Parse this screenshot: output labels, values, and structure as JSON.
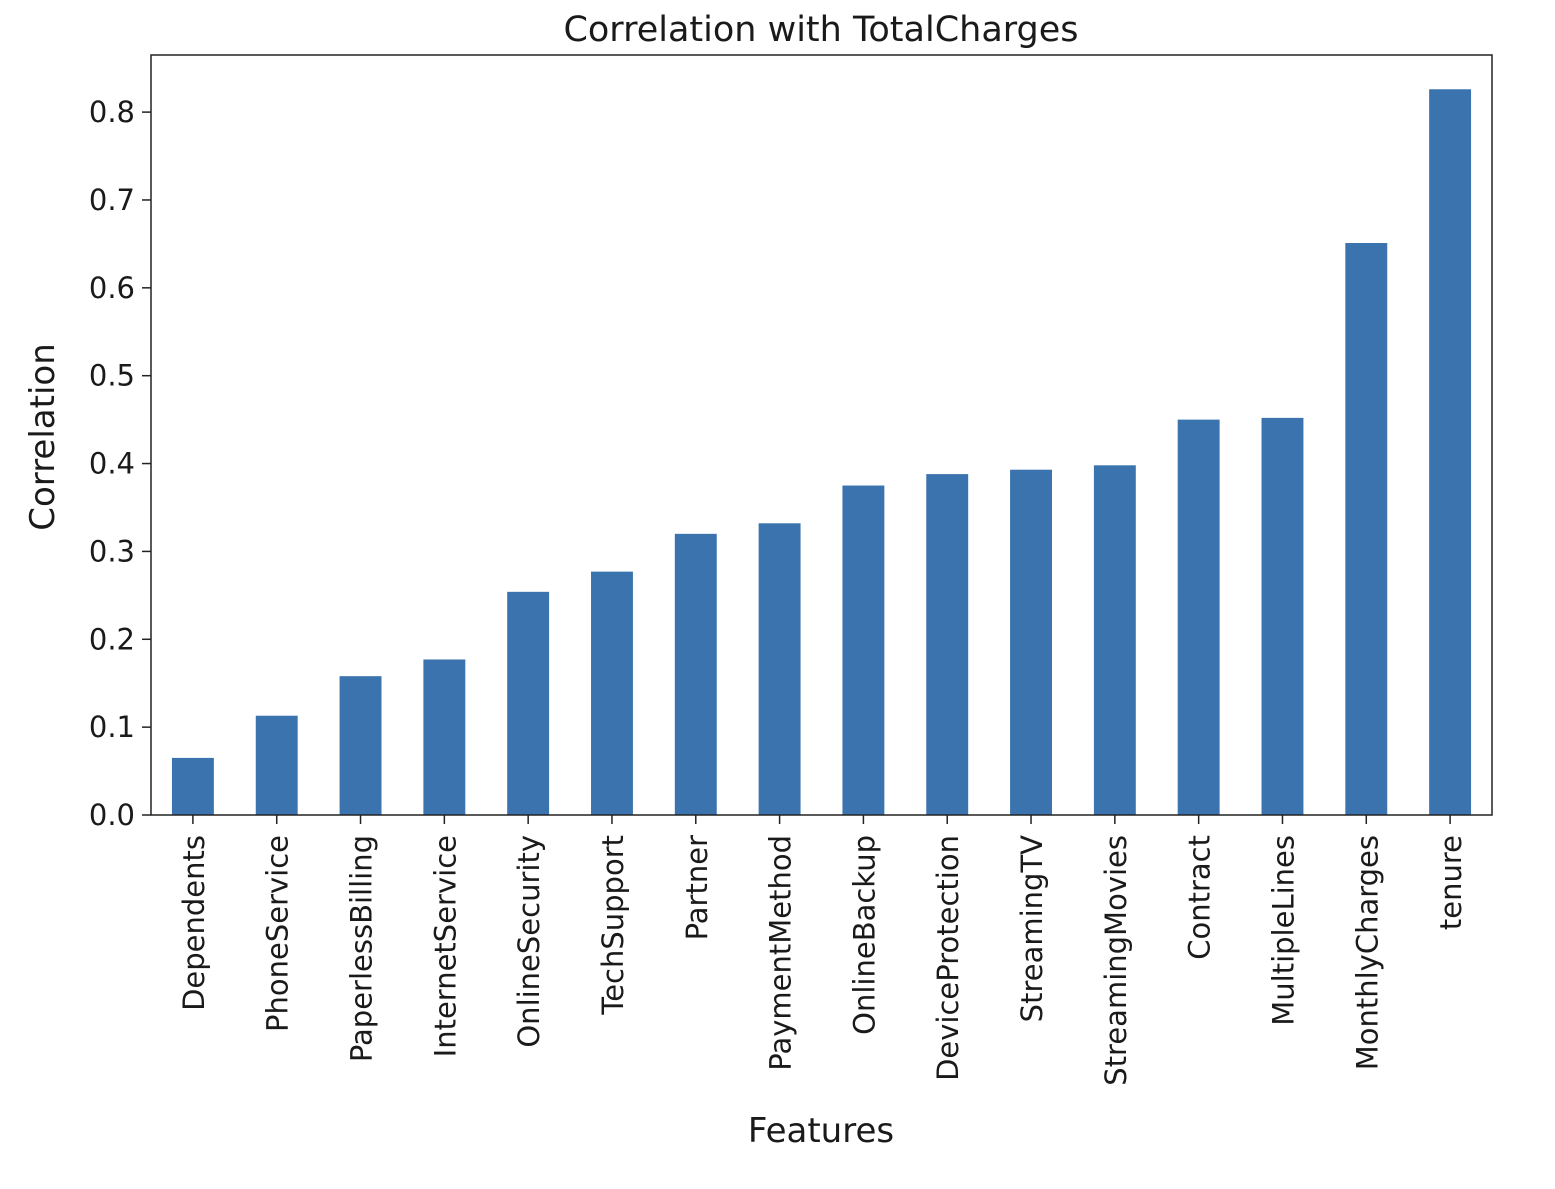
{
  "colors": {
    "bar": "#3a73ad",
    "axis": "#222222",
    "text": "#1a1a1a",
    "background": "#ffffff"
  },
  "chart_data": {
    "type": "bar",
    "title": "Correlation with TotalCharges",
    "xlabel": "Features",
    "ylabel": "Correlation",
    "ylim": [
      0.0,
      0.865
    ],
    "yticks": [
      0.0,
      0.1,
      0.2,
      0.3,
      0.4,
      0.5,
      0.6,
      0.7,
      0.8
    ],
    "ytick_labels": [
      "0.0",
      "0.1",
      "0.2",
      "0.3",
      "0.4",
      "0.5",
      "0.6",
      "0.7",
      "0.8"
    ],
    "grid": false,
    "legend": "none",
    "categories": [
      "Dependents",
      "PhoneService",
      "PaperlessBilling",
      "InternetService",
      "OnlineSecurity",
      "TechSupport",
      "Partner",
      "PaymentMethod",
      "OnlineBackup",
      "DeviceProtection",
      "StreamingTV",
      "StreamingMovies",
      "Contract",
      "MultipleLines",
      "MonthlyCharges",
      "tenure"
    ],
    "values": [
      0.065,
      0.113,
      0.158,
      0.177,
      0.254,
      0.277,
      0.32,
      0.332,
      0.375,
      0.388,
      0.393,
      0.398,
      0.45,
      0.452,
      0.651,
      0.826
    ]
  }
}
